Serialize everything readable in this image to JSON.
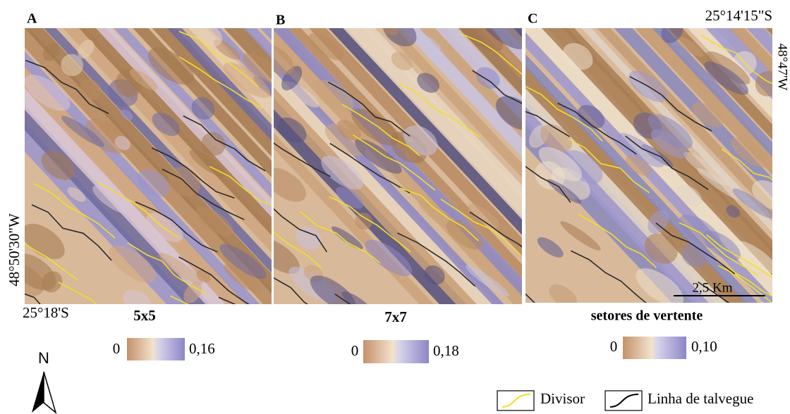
{
  "panels": [
    {
      "letter": "A",
      "label": "5x5",
      "scale_min": "0",
      "scale_max": "0,16"
    },
    {
      "letter": "B",
      "label": "7x7",
      "scale_min": "0",
      "scale_max": "0,18"
    },
    {
      "letter": "C",
      "label": "setores de vertente",
      "scale_min": "0",
      "scale_max": "0,10"
    }
  ],
  "coordinates": {
    "top_lat": "25°14'15\"S",
    "right_lon": "48°47'W",
    "left_lon": "48°50'30\"W",
    "bottom_lat": "25°18'S"
  },
  "scale_bar": "2,5 Km",
  "north": "N",
  "legend": {
    "divisor": "Divisor",
    "talvegue": "Linha de talvegue"
  }
}
